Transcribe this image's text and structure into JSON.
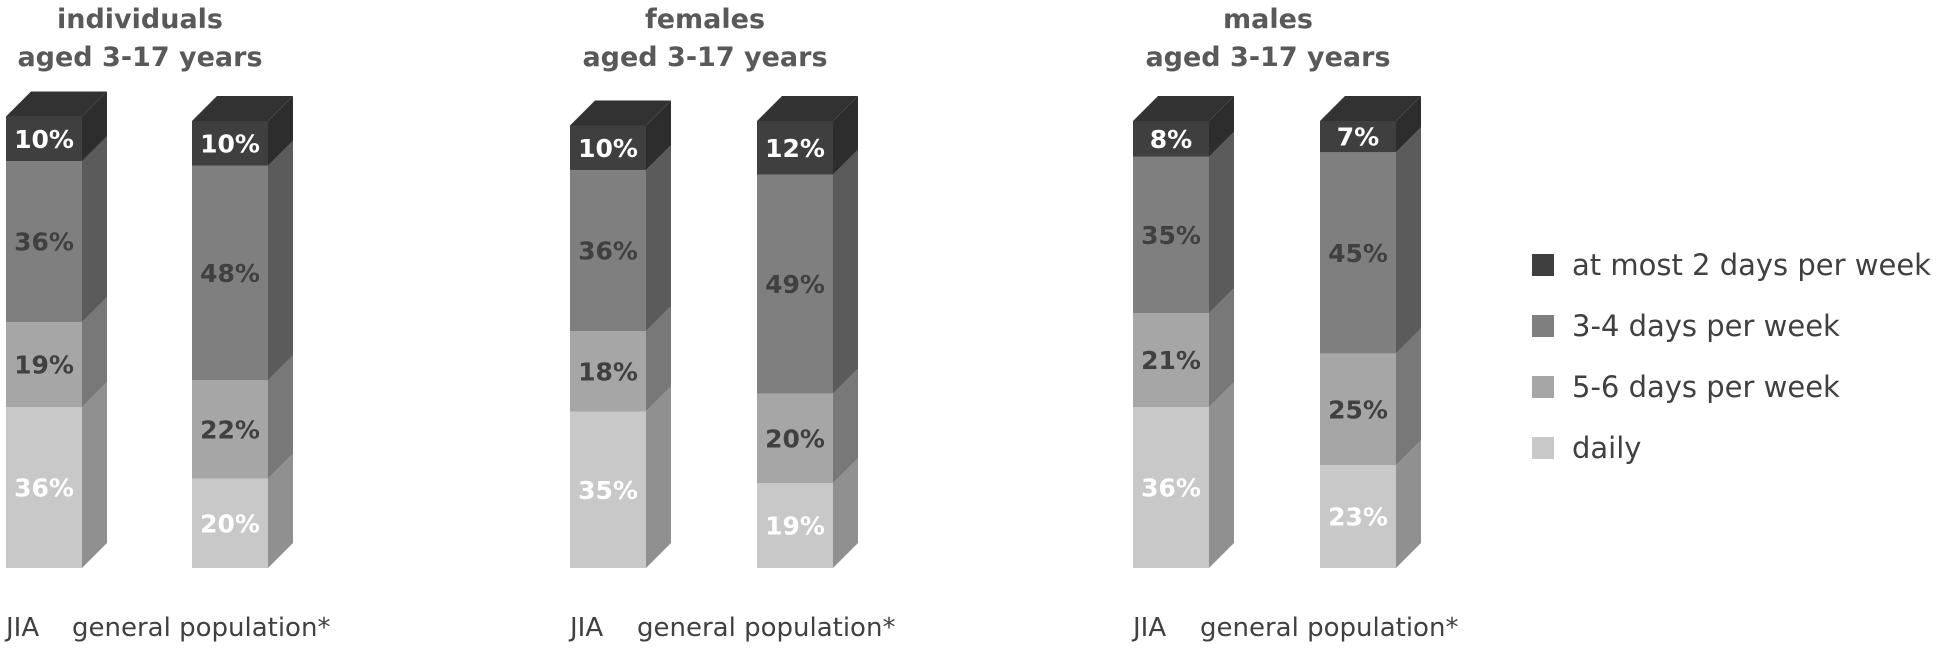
{
  "chart_data": {
    "type": "bar",
    "stacked": true,
    "orientation": "vertical",
    "three_d": true,
    "legend_position": "right",
    "series_colors": {
      "at most 2 days per week": "#3f3f3f",
      "3-4 days per week": "#7f7f7f",
      "5-6 days per week": "#a6a6a6",
      "daily": "#c8c8c8"
    },
    "label_colors": {
      "at most 2 days per week": "#ffffff",
      "3-4 days per week": "#404040",
      "5-6 days per week": "#404040",
      "daily": "#ffffff"
    },
    "legend": [
      "at most 2 days per week",
      "3-4 days per week",
      "5-6 days per week",
      "daily"
    ],
    "panels": [
      {
        "title_lines": [
          "individuals",
          "aged 3-17 years"
        ],
        "bars": [
          {
            "label": "JIA",
            "segments": [
              {
                "series": "daily",
                "value": 36,
                "label": "36%"
              },
              {
                "series": "5-6 days per week",
                "value": 19,
                "label": "19%"
              },
              {
                "series": "3-4 days per week",
                "value": 36,
                "label": "36%"
              },
              {
                "series": "at most 2 days per week",
                "value": 10,
                "label": "10%"
              }
            ]
          },
          {
            "label": "general population*",
            "segments": [
              {
                "series": "daily",
                "value": 20,
                "label": "20%"
              },
              {
                "series": "5-6 days per week",
                "value": 22,
                "label": "22%"
              },
              {
                "series": "3-4 days per week",
                "value": 48,
                "label": "48%"
              },
              {
                "series": "at most 2 days per week",
                "value": 10,
                "label": "10%"
              }
            ]
          }
        ]
      },
      {
        "title_lines": [
          "females",
          "aged 3-17 years"
        ],
        "bars": [
          {
            "label": "JIA",
            "segments": [
              {
                "series": "daily",
                "value": 35,
                "label": "35%"
              },
              {
                "series": "5-6 days per week",
                "value": 18,
                "label": "18%"
              },
              {
                "series": "3-4 days per week",
                "value": 36,
                "label": "36%"
              },
              {
                "series": "at most 2 days per week",
                "value": 10,
                "label": "10%"
              }
            ]
          },
          {
            "label": "general population*",
            "segments": [
              {
                "series": "daily",
                "value": 19,
                "label": "19%"
              },
              {
                "series": "5-6 days per week",
                "value": 20,
                "label": "20%"
              },
              {
                "series": "3-4 days per week",
                "value": 49,
                "label": "49%"
              },
              {
                "series": "at most 2 days per week",
                "value": 12,
                "label": "12%"
              }
            ]
          }
        ]
      },
      {
        "title_lines": [
          "males",
          "aged 3-17 years"
        ],
        "bars": [
          {
            "label": "JIA",
            "segments": [
              {
                "series": "daily",
                "value": 36,
                "label": "36%"
              },
              {
                "series": "5-6 days per week",
                "value": 21,
                "label": "21%"
              },
              {
                "series": "3-4 days per week",
                "value": 35,
                "label": "35%"
              },
              {
                "series": "at most 2 days per week",
                "value": 8,
                "label": "8%"
              }
            ]
          },
          {
            "label": "general population*",
            "segments": [
              {
                "series": "daily",
                "value": 23,
                "label": "23%"
              },
              {
                "series": "5-6 days per week",
                "value": 25,
                "label": "25%"
              },
              {
                "series": "3-4 days per week",
                "value": 45,
                "label": "45%"
              },
              {
                "series": "at most 2 days per week",
                "value": 7,
                "label": "7%"
              }
            ]
          }
        ]
      }
    ]
  }
}
